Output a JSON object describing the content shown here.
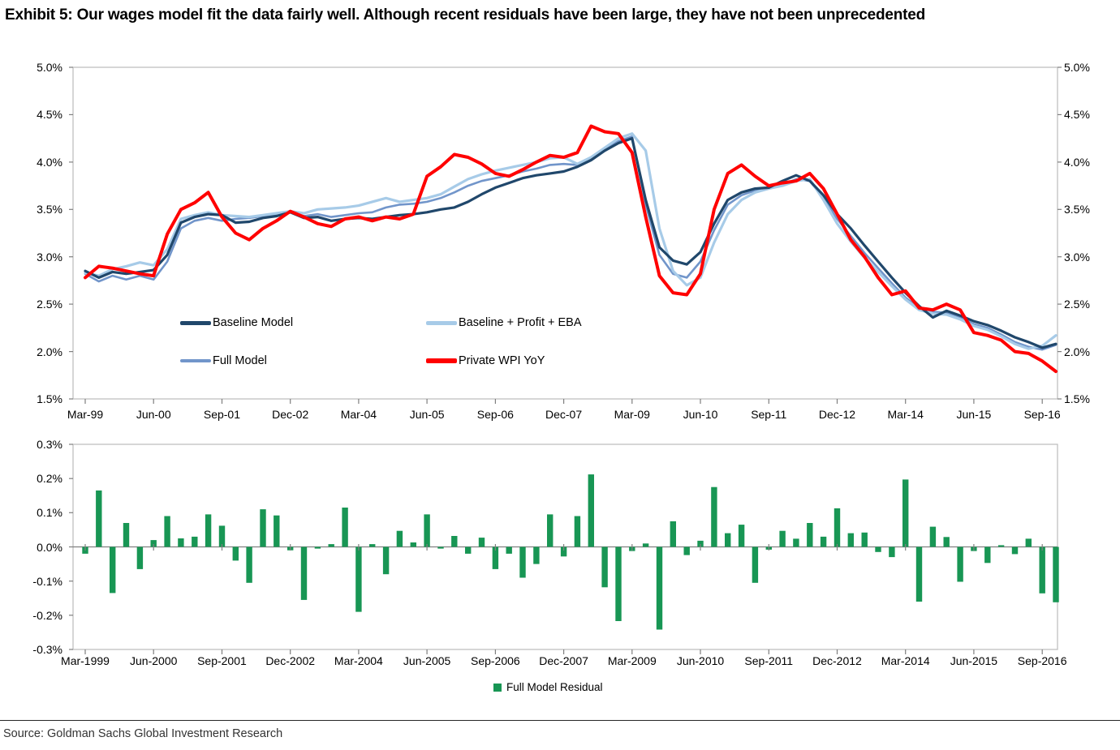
{
  "page": {
    "title": "Exhibit 5: Our wages model fit the data fairly well. Although recent residuals have been large, they have not been unprecedented",
    "source": "Source: Goldman Sachs Global Investment Research"
  },
  "colors": {
    "frame": "#BFBFBF",
    "tick": "#7F7F7F",
    "zero_axis": "#808080",
    "text": "#000000",
    "rule": "#262626",
    "baseline_model": "#20476B",
    "full_model": "#7195CA",
    "baseline_profit_eba": "#A7CBE8",
    "private_wpi": "#FF0000",
    "residual_green": "#189654"
  },
  "chart_data": [
    {
      "type": "line",
      "title": "",
      "xlabel": "",
      "ylabel": "",
      "ylim": [
        1.5,
        5.0
      ],
      "grid": false,
      "legend_position": "inside-left two-column",
      "y_tick_labels": [
        "5.0%",
        "4.5%",
        "4.0%",
        "3.5%",
        "3.0%",
        "2.5%",
        "2.0%",
        "1.5%"
      ],
      "y_tick_values": [
        5.0,
        4.5,
        4.0,
        3.5,
        3.0,
        2.5,
        2.0,
        1.5
      ],
      "x_tick_labels": [
        "Mar-99",
        "Jun-00",
        "Sep-01",
        "Dec-02",
        "Mar-04",
        "Jun-05",
        "Sep-06",
        "Dec-07",
        "Mar-09",
        "Jun-10",
        "Sep-11",
        "Dec-12",
        "Mar-14",
        "Jun-15",
        "Sep-16"
      ],
      "x_tick_indices": [
        0,
        5,
        10,
        15,
        20,
        25,
        30,
        35,
        40,
        45,
        50,
        55,
        60,
        65,
        70
      ],
      "x": [
        "Mar-99",
        "Jun-99",
        "Sep-99",
        "Dec-99",
        "Mar-00",
        "Jun-00",
        "Sep-00",
        "Dec-00",
        "Mar-01",
        "Jun-01",
        "Sep-01",
        "Dec-01",
        "Mar-02",
        "Jun-02",
        "Sep-02",
        "Dec-02",
        "Mar-03",
        "Jun-03",
        "Sep-03",
        "Dec-03",
        "Mar-04",
        "Jun-04",
        "Sep-04",
        "Dec-04",
        "Mar-05",
        "Jun-05",
        "Sep-05",
        "Dec-05",
        "Mar-06",
        "Jun-06",
        "Sep-06",
        "Dec-06",
        "Mar-07",
        "Jun-07",
        "Sep-07",
        "Dec-07",
        "Mar-08",
        "Jun-08",
        "Sep-08",
        "Dec-08",
        "Mar-09",
        "Jun-09",
        "Sep-09",
        "Dec-09",
        "Mar-10",
        "Jun-10",
        "Sep-10",
        "Dec-10",
        "Mar-11",
        "Jun-11",
        "Sep-11",
        "Dec-11",
        "Mar-12",
        "Jun-12",
        "Sep-12",
        "Dec-12",
        "Mar-13",
        "Jun-13",
        "Sep-13",
        "Dec-13",
        "Mar-14",
        "Jun-14",
        "Sep-14",
        "Dec-14",
        "Mar-15",
        "Jun-15",
        "Sep-15",
        "Dec-15",
        "Mar-16",
        "Jun-16",
        "Sep-16",
        "Dec-16"
      ],
      "series": [
        {
          "name": "Baseline Model",
          "color": "#20476B",
          "values": [
            2.85,
            2.78,
            2.84,
            2.82,
            2.84,
            2.86,
            3.02,
            3.36,
            3.42,
            3.45,
            3.44,
            3.36,
            3.37,
            3.41,
            3.43,
            3.47,
            3.41,
            3.42,
            3.38,
            3.4,
            3.41,
            3.4,
            3.42,
            3.44,
            3.45,
            3.47,
            3.5,
            3.52,
            3.58,
            3.66,
            3.73,
            3.78,
            3.83,
            3.86,
            3.88,
            3.9,
            3.95,
            4.02,
            4.12,
            4.2,
            4.25,
            3.6,
            3.1,
            2.96,
            2.92,
            3.05,
            3.35,
            3.6,
            3.68,
            3.72,
            3.73,
            3.8,
            3.86,
            3.8,
            3.65,
            3.45,
            3.3,
            3.12,
            2.95,
            2.78,
            2.62,
            2.48,
            2.36,
            2.43,
            2.38,
            2.32,
            2.28,
            2.22,
            2.15,
            2.1,
            2.04,
            2.08
          ]
        },
        {
          "name": "Full Model",
          "color": "#7195CA",
          "values": [
            2.82,
            2.74,
            2.8,
            2.76,
            2.8,
            2.76,
            2.95,
            3.3,
            3.38,
            3.41,
            3.38,
            3.4,
            3.41,
            3.43,
            3.45,
            3.47,
            3.43,
            3.45,
            3.42,
            3.44,
            3.46,
            3.47,
            3.52,
            3.55,
            3.56,
            3.58,
            3.62,
            3.68,
            3.75,
            3.8,
            3.83,
            3.86,
            3.9,
            3.93,
            3.97,
            3.98,
            3.97,
            4.03,
            4.13,
            4.22,
            4.27,
            3.55,
            3.02,
            2.82,
            2.78,
            2.95,
            3.28,
            3.55,
            3.65,
            3.7,
            3.72,
            3.76,
            3.82,
            3.8,
            3.62,
            3.4,
            3.22,
            3.04,
            2.88,
            2.72,
            2.57,
            2.46,
            2.42,
            2.41,
            2.36,
            2.29,
            2.25,
            2.18,
            2.1,
            2.05,
            2.02,
            2.07
          ]
        },
        {
          "name": "Baseline + Profit + EBA",
          "color": "#A7CBE8",
          "values": [
            2.83,
            2.8,
            2.87,
            2.9,
            2.94,
            2.91,
            3.08,
            3.4,
            3.44,
            3.47,
            3.44,
            3.43,
            3.42,
            3.44,
            3.46,
            3.48,
            3.46,
            3.5,
            3.51,
            3.52,
            3.54,
            3.58,
            3.62,
            3.58,
            3.6,
            3.62,
            3.66,
            3.74,
            3.82,
            3.87,
            3.91,
            3.94,
            3.97,
            4.0,
            4.04,
            4.05,
            3.98,
            4.05,
            4.15,
            4.25,
            4.3,
            4.12,
            3.3,
            2.85,
            2.7,
            2.78,
            3.15,
            3.45,
            3.6,
            3.68,
            3.72,
            3.75,
            3.8,
            3.82,
            3.6,
            3.35,
            3.16,
            2.99,
            2.84,
            2.69,
            2.55,
            2.44,
            2.4,
            2.39,
            2.34,
            2.27,
            2.23,
            2.16,
            2.08,
            2.03,
            2.06,
            2.17
          ]
        },
        {
          "name": "Private WPI YoY",
          "color": "#FF0000",
          "values": [
            2.78,
            2.9,
            2.88,
            2.85,
            2.82,
            2.8,
            3.24,
            3.5,
            3.57,
            3.68,
            3.42,
            3.25,
            3.18,
            3.3,
            3.38,
            3.48,
            3.42,
            3.35,
            3.32,
            3.4,
            3.42,
            3.38,
            3.42,
            3.4,
            3.45,
            3.85,
            3.95,
            4.08,
            4.05,
            3.98,
            3.88,
            3.85,
            3.92,
            4.0,
            4.07,
            4.05,
            4.1,
            4.38,
            4.32,
            4.3,
            4.1,
            3.42,
            2.8,
            2.62,
            2.6,
            2.82,
            3.5,
            3.88,
            3.97,
            3.85,
            3.75,
            3.78,
            3.8,
            3.88,
            3.72,
            3.45,
            3.18,
            3.0,
            2.78,
            2.6,
            2.64,
            2.46,
            2.44,
            2.5,
            2.44,
            2.2,
            2.17,
            2.12,
            2.0,
            1.98,
            1.9,
            1.79
          ]
        }
      ]
    },
    {
      "type": "bar",
      "title": "",
      "xlabel": "",
      "ylabel": "",
      "ylim": [
        -0.3,
        0.3
      ],
      "grid": false,
      "legend_position": "bottom-center",
      "x_quarters_same_as_top_chart": true,
      "y_tick_labels": [
        "0.3%",
        "0.2%",
        "0.1%",
        "0.0%",
        "-0.1%",
        "-0.2%",
        "-0.3%"
      ],
      "y_tick_values": [
        0.3,
        0.2,
        0.1,
        0.0,
        -0.1,
        -0.2,
        -0.3
      ],
      "x_tick_labels": [
        "Mar-1999",
        "Jun-2000",
        "Sep-2001",
        "Dec-2002",
        "Mar-2004",
        "Jun-2005",
        "Sep-2006",
        "Dec-2007",
        "Mar-2009",
        "Jun-2010",
        "Sep-2011",
        "Dec-2012",
        "Mar-2014",
        "Jun-2015",
        "Sep-2016"
      ],
      "x_tick_indices": [
        0,
        5,
        10,
        15,
        20,
        25,
        30,
        35,
        40,
        45,
        50,
        55,
        60,
        65,
        70
      ],
      "series": [
        {
          "name": "Full Model Residual",
          "color": "#189654",
          "values": [
            -0.02,
            0.165,
            -0.135,
            0.07,
            -0.065,
            0.02,
            0.09,
            0.025,
            0.03,
            0.095,
            0.062,
            -0.04,
            -0.105,
            0.11,
            0.092,
            -0.01,
            -0.155,
            -0.005,
            0.008,
            0.115,
            -0.19,
            0.008,
            -0.08,
            0.047,
            0.013,
            0.095,
            -0.005,
            0.032,
            -0.02,
            0.027,
            -0.065,
            -0.02,
            -0.09,
            -0.05,
            0.095,
            -0.028,
            0.09,
            0.212,
            -0.118,
            -0.217,
            -0.012,
            0.01,
            -0.242,
            0.075,
            -0.024,
            0.018,
            0.175,
            0.04,
            0.065,
            -0.105,
            -0.008,
            0.047,
            0.024,
            0.07,
            0.03,
            0.113,
            0.04,
            0.042,
            -0.015,
            -0.03,
            0.197,
            -0.16,
            0.059,
            0.029,
            -0.102,
            -0.012,
            -0.047,
            0.005,
            -0.021,
            0.024,
            -0.136,
            -0.162
          ]
        }
      ]
    }
  ]
}
